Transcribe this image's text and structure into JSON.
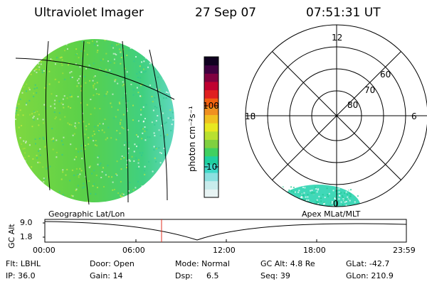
{
  "header": {
    "instrument": "Ultraviolet Imager",
    "date": "27 Sep 07",
    "time": "07:51:31 UT"
  },
  "colorbar": {
    "label": "photon cm⁻²s⁻¹",
    "ticks": [
      "100",
      "10"
    ],
    "colors": [
      "#e8f4f4",
      "#c8ecec",
      "#8ce0e0",
      "#40d8c8",
      "#20d0a0",
      "#40d060",
      "#80d040",
      "#b8e030",
      "#e8e820",
      "#f0c020",
      "#f09020",
      "#f06010",
      "#e02020",
      "#c00030",
      "#800040",
      "#400040",
      "#100020"
    ]
  },
  "left_panel": {
    "title": "Geographic Lat/Lon",
    "fill_color": "#58d04a"
  },
  "polar_plot": {
    "title": "Apex MLat/MLT",
    "mlt_labels": {
      "top": "12",
      "left": "18",
      "right": "6",
      "bottom": "0"
    },
    "lat_labels": [
      "60",
      "70",
      "80"
    ],
    "aurora_color": "#40d8b8"
  },
  "altitude_plot": {
    "ylabel": "GC Alt",
    "yticks": [
      "9.0",
      "1.8"
    ],
    "xticks": [
      "00:00",
      "06:00",
      "12:00",
      "18:00",
      "23:59"
    ],
    "current_marker_color": "#e03020"
  },
  "footer": {
    "filter": "Flt: LBHL",
    "ip": "IP: 36.0",
    "door": "Door: Open",
    "gain": "Gain: 14",
    "mode": "Mode: Normal",
    "dsp_label": "Dsp:",
    "dsp_value": "6.5",
    "gc_alt": "GC Alt: 4.8 Re",
    "seq": "Seq: 39",
    "glat": "GLat: -42.7",
    "glon": "GLon: 210.9"
  }
}
